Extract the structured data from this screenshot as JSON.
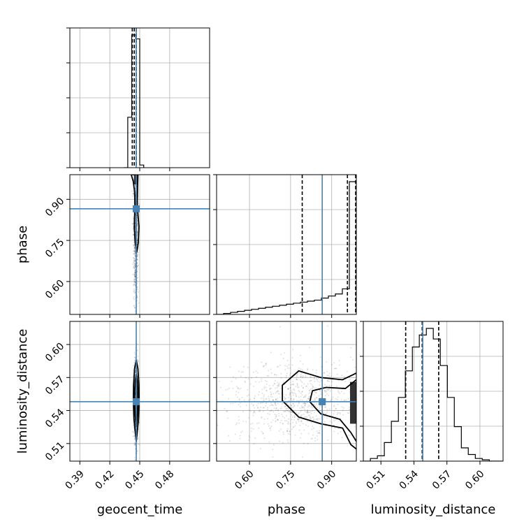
{
  "chart_data": {
    "type": "corner",
    "parameters": [
      "geocent_time",
      "phase",
      "luminosity_distance"
    ],
    "axis_labels": {
      "geocent_time": "geocent_time",
      "phase": "phase",
      "luminosity_distance": "luminosity_distance"
    },
    "ranges": {
      "geocent_time": [
        0.38,
        0.52
      ],
      "phase": [
        0.48,
        0.99
      ],
      "luminosity_distance": [
        0.494,
        0.621
      ]
    },
    "ticks": {
      "geocent_time": {
        "values": [
          0.39,
          0.42,
          0.45,
          0.48
        ],
        "labels": [
          "0.39",
          "0.42",
          "0.45",
          "0.48"
        ]
      },
      "phase": {
        "values": [
          0.6,
          0.75,
          0.9
        ],
        "labels": [
          "0.60",
          "0.75",
          "0.90"
        ]
      },
      "luminosity_distance": {
        "values": [
          0.51,
          0.54,
          0.57,
          0.6
        ],
        "labels": [
          "0.51",
          "0.54",
          "0.57",
          "0.60"
        ]
      }
    },
    "truths": {
      "geocent_time": 0.4465,
      "phase": 0.8655,
      "luminosity_distance": 0.548
    },
    "quantiles": {
      "geocent_time": [
        0.4425,
        0.4445,
        0.4465
      ],
      "phase": [
        0.7925,
        0.9575,
        0.9875
      ],
      "luminosity_distance": [
        0.5325,
        0.5475,
        0.5625
      ]
    },
    "histograms": {
      "geocent_time": {
        "bins": [
          0.434,
          0.438,
          0.442,
          0.446,
          0.45,
          0.454
        ],
        "counts": [
          0,
          0.38,
          1.0,
          0.97,
          0.02
        ]
      },
      "phase": {
        "bins": [
          0.48,
          0.5055,
          0.531,
          0.5565,
          0.582,
          0.6075,
          0.633,
          0.6585,
          0.684,
          0.7095,
          0.735,
          0.7605,
          0.786,
          0.8115,
          0.837,
          0.8625,
          0.888,
          0.9135,
          0.939,
          0.9645,
          0.99
        ],
        "counts": [
          0.0,
          0.007,
          0.014,
          0.021,
          0.028,
          0.035,
          0.042,
          0.049,
          0.056,
          0.063,
          0.07,
          0.077,
          0.084,
          0.091,
          0.098,
          0.112,
          0.126,
          0.14,
          0.175,
          0.91
        ]
      },
      "luminosity_distance": {
        "bins": [
          0.494,
          0.5004,
          0.5068,
          0.5131,
          0.5195,
          0.5259,
          0.5322,
          0.5386,
          0.5449,
          0.5513,
          0.5576,
          0.564,
          0.5704,
          0.5767,
          0.5831,
          0.5894,
          0.5958,
          0.6021,
          0.6085,
          0.6148,
          0.621
        ],
        "counts": [
          0.0,
          0.02,
          0.04,
          0.14,
          0.3,
          0.48,
          0.68,
          0.86,
          0.95,
          1.0,
          0.92,
          0.72,
          0.48,
          0.26,
          0.1,
          0.05,
          0.02,
          0.01,
          0.0,
          0.0
        ]
      }
    },
    "density_2d": [
      {
        "x": "geocent_time",
        "y": "phase",
        "points": {
          "center": [
            0.446,
            0.78
          ],
          "spread": [
            0.0011,
            0.13
          ]
        },
        "contours": [
          {
            "x": [
              0.4415,
              0.4435,
              0.4448,
              0.4452,
              0.4445,
              0.4455,
              0.4472,
              0.4485,
              0.4492,
              0.4475,
              0.4478,
              0.4482,
              0.4462,
              0.4448,
              0.4432,
              0.4415
            ],
            "y": [
              0.99,
              0.965,
              0.93,
              0.88,
              0.8,
              0.74,
              0.71,
              0.74,
              0.8,
              0.88,
              0.93,
              0.99,
              0.99,
              0.99,
              0.99,
              0.99
            ]
          }
        ]
      },
      {
        "x": "geocent_time",
        "y": "luminosity_distance",
        "points": {
          "center": [
            0.4465,
            0.548
          ],
          "spread": [
            0.0011,
            0.018
          ]
        },
        "contours": [
          {
            "x": [
              0.4465,
              0.4482,
              0.4492,
              0.4494,
              0.4488,
              0.4472,
              0.4465,
              0.4458,
              0.4442,
              0.4436,
              0.4438,
              0.4448,
              0.4465
            ],
            "y": [
              0.586,
              0.578,
              0.563,
              0.548,
              0.532,
              0.518,
              0.512,
              0.518,
              0.532,
              0.548,
              0.563,
              0.578,
              0.586
            ]
          },
          {
            "x": [
              0.4465,
              0.4475,
              0.4481,
              0.4482,
              0.4478,
              0.447,
              0.4465,
              0.446,
              0.4452,
              0.4448,
              0.4449,
              0.4455,
              0.4465
            ],
            "y": [
              0.573,
              0.567,
              0.558,
              0.548,
              0.538,
              0.529,
              0.525,
              0.529,
              0.538,
              0.548,
              0.558,
              0.567,
              0.573
            ]
          }
        ]
      },
      {
        "x": "phase",
        "y": "luminosity_distance",
        "points": {
          "center": [
            0.78,
            0.548
          ],
          "spread": [
            0.12,
            0.018
          ]
        },
        "contours": [
          {
            "x": [
              0.99,
              0.94,
              0.86,
              0.78,
              0.72,
              0.72,
              0.78,
              0.86,
              0.94,
              0.97,
              0.99
            ],
            "y": [
              0.574,
              0.568,
              0.57,
              0.576,
              0.563,
              0.549,
              0.534,
              0.528,
              0.524,
              0.509,
              0.505
            ]
          },
          {
            "x": [
              0.99,
              0.95,
              0.88,
              0.83,
              0.82,
              0.86,
              0.93,
              0.97,
              0.99
            ],
            "y": [
              0.568,
              0.56,
              0.561,
              0.558,
              0.548,
              0.537,
              0.532,
              0.52,
              0.512
            ]
          }
        ]
      }
    ]
  }
}
